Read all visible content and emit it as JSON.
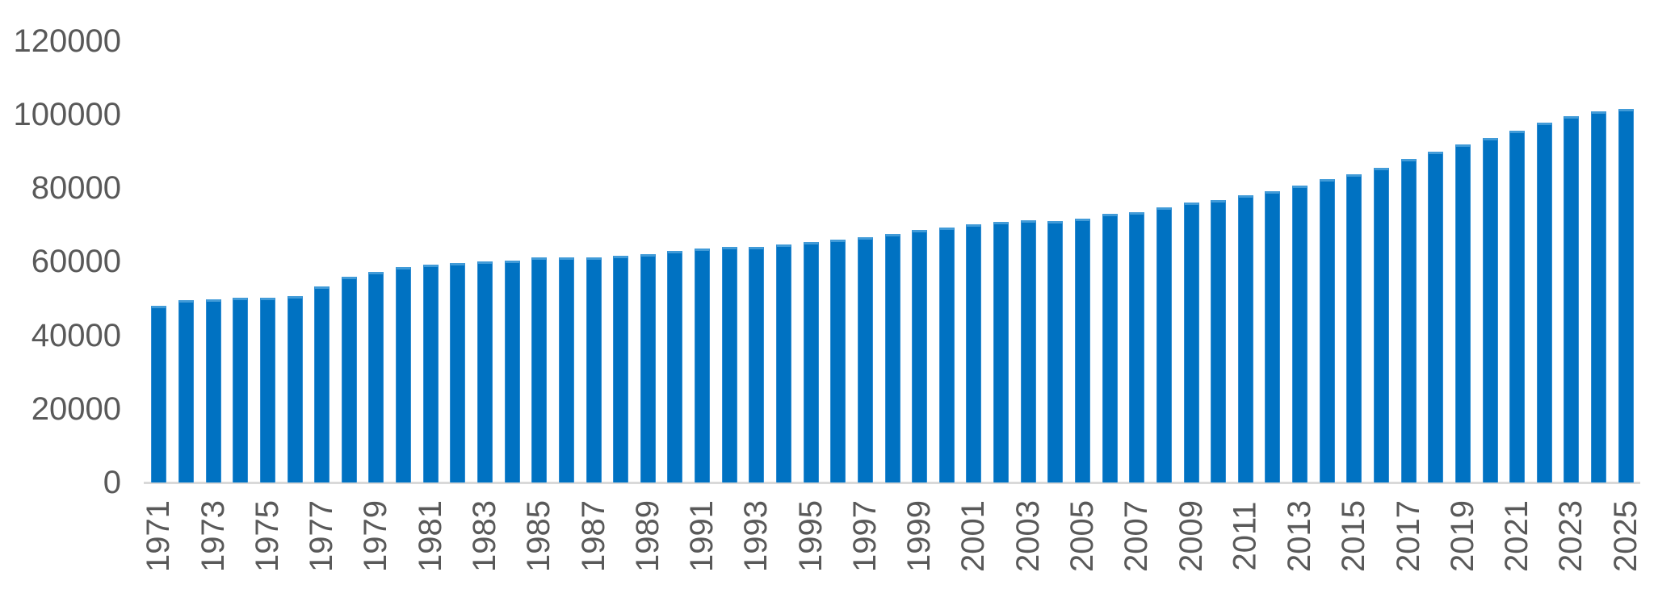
{
  "chart_data": {
    "type": "bar",
    "title": "",
    "xlabel": "",
    "ylabel": "",
    "legend": "none",
    "grid": "off",
    "background": "#FFFFFF",
    "bar_color": "#0072C2",
    "bar_edge_color": "#419BD8",
    "axis_line_color": "#D9D9D9",
    "tick_label_color": "#595959",
    "x_label_rotation": -90,
    "ylim": [
      0,
      120000
    ],
    "yticks": [
      0,
      20000,
      40000,
      60000,
      80000,
      100000,
      120000
    ],
    "ytick_labels": [
      "0",
      "20000",
      "40000",
      "60000",
      "80000",
      "100000",
      "120000"
    ],
    "x": [
      1971,
      1972,
      1973,
      1974,
      1975,
      1976,
      1977,
      1978,
      1979,
      1980,
      1981,
      1982,
      1983,
      1984,
      1985,
      1986,
      1987,
      1988,
      1989,
      1990,
      1991,
      1992,
      1993,
      1994,
      1995,
      1996,
      1997,
      1998,
      1999,
      2000,
      2001,
      2002,
      2003,
      2004,
      2005,
      2006,
      2007,
      2008,
      2009,
      2010,
      2011,
      2012,
      2013,
      2014,
      2015,
      2016,
      2017,
      2018,
      2019,
      2020,
      2021,
      2022,
      2023,
      2024,
      2025
    ],
    "values": [
      48100,
      49500,
      49800,
      50200,
      50100,
      50600,
      53300,
      56000,
      57200,
      58500,
      59200,
      59600,
      60000,
      60200,
      61200,
      61100,
      61200,
      61500,
      62100,
      62800,
      63500,
      64100,
      63900,
      64600,
      65400,
      65900,
      66600,
      67600,
      68600,
      69300,
      70200,
      70700,
      71200,
      71000,
      71600,
      72900,
      73500,
      74800,
      76000,
      76700,
      78000,
      79200,
      80600,
      82500,
      83700,
      85500,
      87800,
      89800,
      91900,
      93600,
      95600,
      97700,
      99600,
      100900,
      101500
    ],
    "xtick_labels_shown": [
      "1971",
      "1973",
      "1975",
      "1977",
      "1979",
      "1981",
      "1983",
      "1985",
      "1987",
      "1989",
      "1991",
      "1993",
      "1995",
      "1997",
      "1999",
      "2001",
      "2003",
      "2005",
      "2007",
      "2009",
      "2011",
      "2013",
      "2015",
      "2017",
      "2019",
      "2021",
      "2023",
      "2025"
    ]
  }
}
